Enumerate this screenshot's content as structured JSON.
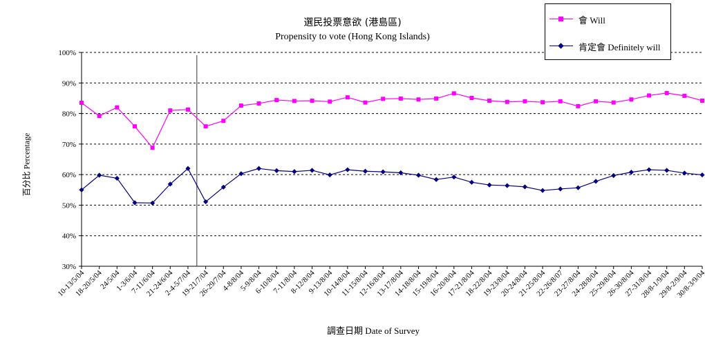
{
  "chart_data": {
    "type": "line",
    "title": "選民投票意欲 (港島區)",
    "subtitle": "Propensity to vote (Hong Kong Islands)",
    "xlabel": "調查日期 Date of Survey",
    "ylabel": "百分比 Percentage",
    "ylim": [
      30,
      100
    ],
    "yticks": [
      "30%",
      "40%",
      "50%",
      "60%",
      "70%",
      "80%",
      "90%",
      "100%"
    ],
    "grid": true,
    "legend_position": "top-right",
    "vertical_marker_index": 7,
    "categories": [
      "10-13/5/04",
      "18-20/5/04",
      "24/5/04",
      "1-3/6/04",
      "7-11/6/04",
      "21-24/6/04",
      "2-4-5/7/04",
      "19-21/7/04",
      "26-29/7/04",
      "4-8/8/04",
      "5-9/8/04",
      "6-10/8/04",
      "7-11/8/04",
      "8-12/8/04",
      "9-13/8/04",
      "10-14/8/04",
      "11-15/8/04",
      "12-16/8/04",
      "13-17/8/04",
      "14-18/8/04",
      "15-19/8/04",
      "16-20/8/04",
      "17-21/8/04",
      "18-22/8/04",
      "19-23/8/04",
      "20-24/8/04",
      "21-25/8/04",
      "22-26/8/07",
      "23-27/8/04",
      "24-28/8/04",
      "25-29/8/04",
      "26-30/8/04",
      "27-31/8/04",
      "28/8-1/9/04",
      "29/8-2/9/04",
      "30/8-3/9/04"
    ],
    "series": [
      {
        "name": "會 Will",
        "color": "#ff00ff",
        "marker": "square",
        "values": [
          83.5,
          79.2,
          82.0,
          75.8,
          68.8,
          81.0,
          81.3,
          75.8,
          77.6,
          82.6,
          83.3,
          84.4,
          84.1,
          84.2,
          83.9,
          85.3,
          83.6,
          84.8,
          84.9,
          84.6,
          84.9,
          86.6,
          85.1,
          84.2,
          83.8,
          84.0,
          83.7,
          84.0,
          82.4,
          84.0,
          83.6,
          84.6,
          85.9,
          86.7,
          85.8,
          84.2
        ]
      },
      {
        "name": "肯定會 Definitely will",
        "color": "#000080",
        "marker": "diamond",
        "values": [
          55.0,
          59.8,
          58.8,
          50.8,
          50.7,
          56.9,
          62.0,
          51.1,
          55.9,
          60.3,
          62.0,
          61.3,
          61.0,
          61.4,
          59.9,
          61.6,
          61.1,
          60.9,
          60.6,
          59.8,
          58.4,
          59.2,
          57.5,
          56.6,
          56.4,
          56.0,
          54.8,
          55.3,
          55.7,
          57.8,
          59.7,
          60.8,
          61.6,
          61.4,
          60.5,
          59.9
        ]
      }
    ]
  }
}
